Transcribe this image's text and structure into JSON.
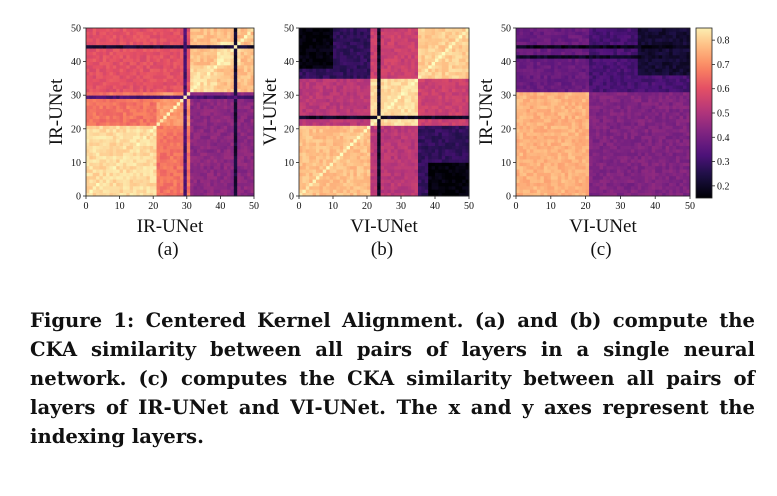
{
  "chart_data": [
    {
      "type": "heatmap",
      "panel_label": "(a)",
      "xlabel": "IR-UNet",
      "ylabel": "IR-UNet",
      "x_ticks": [
        0,
        10,
        20,
        30,
        40,
        50
      ],
      "y_ticks": [
        0,
        10,
        20,
        30,
        40,
        50
      ],
      "xlim": [
        0,
        50
      ],
      "ylim": [
        0,
        50
      ],
      "grid_cells": 50,
      "blocks": [
        {
          "x": [
            0,
            21
          ],
          "y": [
            0,
            21
          ],
          "value": 0.82
        },
        {
          "x": [
            0,
            21
          ],
          "y": [
            21,
            31
          ],
          "value": 0.66
        },
        {
          "x": [
            21,
            31
          ],
          "y": [
            0,
            21
          ],
          "value": 0.66
        },
        {
          "x": [
            21,
            31
          ],
          "y": [
            21,
            31
          ],
          "value": 0.72
        },
        {
          "x": [
            0,
            31
          ],
          "y": [
            31,
            50
          ],
          "value": 0.6
        },
        {
          "x": [
            31,
            50
          ],
          "y": [
            0,
            31
          ],
          "value": 0.44
        },
        {
          "x": [
            31,
            50
          ],
          "y": [
            31,
            50
          ],
          "value": 0.78
        },
        {
          "x": [
            31,
            39
          ],
          "y": [
            31,
            39
          ],
          "value": 0.82
        },
        {
          "x": [
            39,
            46
          ],
          "y": [
            39,
            46
          ],
          "value": 0.83
        }
      ],
      "lines": [
        {
          "axis": "x",
          "at": 44,
          "value": 0.22
        },
        {
          "axis": "y",
          "at": 44,
          "value": 0.22
        },
        {
          "axis": "x",
          "at": 29,
          "value": 0.32
        },
        {
          "axis": "y",
          "at": 29,
          "value": 0.32
        }
      ],
      "diagonal": 0.86
    },
    {
      "type": "heatmap",
      "panel_label": "(b)",
      "xlabel": "VI-UNet",
      "ylabel": "VI-UNet",
      "x_ticks": [
        0,
        10,
        20,
        30,
        40,
        50
      ],
      "y_ticks": [
        0,
        10,
        20,
        30,
        40,
        50
      ],
      "xlim": [
        0,
        50
      ],
      "ylim": [
        0,
        50
      ],
      "grid_cells": 50,
      "blocks": [
        {
          "x": [
            0,
            21
          ],
          "y": [
            0,
            21
          ],
          "value": 0.78
        },
        {
          "x": [
            21,
            35
          ],
          "y": [
            21,
            35
          ],
          "value": 0.82
        },
        {
          "x": [
            35,
            50
          ],
          "y": [
            35,
            50
          ],
          "value": 0.8
        },
        {
          "x": [
            0,
            21
          ],
          "y": [
            21,
            35
          ],
          "value": 0.52
        },
        {
          "x": [
            21,
            35
          ],
          "y": [
            0,
            21
          ],
          "value": 0.52
        },
        {
          "x": [
            0,
            21
          ],
          "y": [
            35,
            50
          ],
          "value": 0.28
        },
        {
          "x": [
            35,
            50
          ],
          "y": [
            0,
            21
          ],
          "value": 0.28
        },
        {
          "x": [
            21,
            35
          ],
          "y": [
            35,
            50
          ],
          "value": 0.55
        },
        {
          "x": [
            35,
            50
          ],
          "y": [
            21,
            35
          ],
          "value": 0.55
        },
        {
          "x": [
            38,
            50
          ],
          "y": [
            0,
            10
          ],
          "value": 0.16
        },
        {
          "x": [
            0,
            10
          ],
          "y": [
            38,
            50
          ],
          "value": 0.16
        }
      ],
      "lines": [
        {
          "axis": "x",
          "at": 23,
          "value": 0.2
        },
        {
          "axis": "y",
          "at": 23,
          "value": 0.2
        }
      ],
      "diagonal": 0.86
    },
    {
      "type": "heatmap",
      "panel_label": "(c)",
      "xlabel": "VI-UNet",
      "ylabel": "IR-UNet",
      "x_ticks": [
        0,
        10,
        20,
        30,
        40,
        50
      ],
      "y_ticks": [
        0,
        10,
        20,
        30,
        40,
        50
      ],
      "xlim": [
        0,
        50
      ],
      "ylim": [
        0,
        50
      ],
      "grid_cells": 50,
      "blocks": [
        {
          "x": [
            0,
            21
          ],
          "y": [
            0,
            31
          ],
          "value": 0.76
        },
        {
          "x": [
            21,
            50
          ],
          "y": [
            0,
            31
          ],
          "value": 0.42
        },
        {
          "x": [
            0,
            21
          ],
          "y": [
            31,
            50
          ],
          "value": 0.38
        },
        {
          "x": [
            21,
            50
          ],
          "y": [
            31,
            50
          ],
          "value": 0.32
        },
        {
          "x": [
            35,
            50
          ],
          "y": [
            36,
            50
          ],
          "value": 0.22
        }
      ],
      "lines": [
        {
          "axis": "y",
          "at": 44,
          "value": 0.18
        },
        {
          "axis": "y",
          "at": 41,
          "value": 0.2
        }
      ],
      "diagonal": null,
      "colorbar": {
        "ticks": [
          0.2,
          0.3,
          0.4,
          0.5,
          0.6,
          0.7,
          0.8
        ],
        "range": [
          0.15,
          0.85
        ],
        "colormap": "magma"
      }
    }
  ],
  "caption": {
    "text": "Figure 1: Centered Kernel Alignment. (a) and (b) compute the CKA similarity between all pairs of layers in a single neural network. (c) computes the CKA similarity between all pairs of layers of IR-UNet and VI-UNet. The x and y axes represent the indexing layers."
  }
}
